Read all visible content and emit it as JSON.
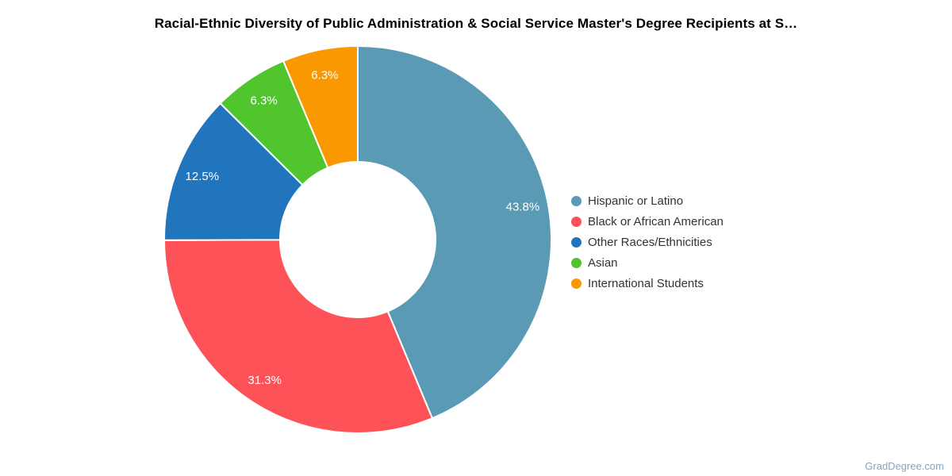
{
  "chart_data": {
    "type": "pie",
    "subtype": "donut",
    "title": "Racial-Ethnic Diversity of Public Administration & Social Service Master's Degree Recipients at S…",
    "legend_position": "right",
    "background_color": "#ffffff",
    "slice_border_color": "#ffffff",
    "title_color": "#000000",
    "legend_text_color": "#333333",
    "label_text_color": "#ffffff",
    "segments": [
      {
        "label": "Hispanic or Latino",
        "value": 43.8,
        "display": "43.8%",
        "color": "#5a9ab5"
      },
      {
        "label": "Black or African American",
        "value": 31.3,
        "display": "31.3%",
        "color": "#fd5257"
      },
      {
        "label": "Other Races/Ethnicities",
        "value": 12.5,
        "display": "12.5%",
        "color": "#2075bd"
      },
      {
        "label": "Asian",
        "value": 6.3,
        "display": "6.3%",
        "color": "#50c52e"
      },
      {
        "label": "International Students",
        "value": 6.3,
        "display": "6.3%",
        "color": "#f99800"
      }
    ],
    "watermark": "GradDegree.com"
  }
}
